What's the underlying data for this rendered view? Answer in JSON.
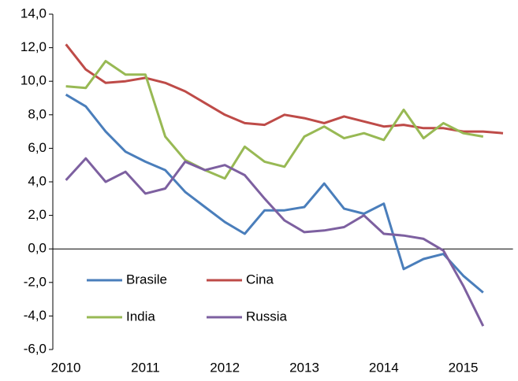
{
  "chart_data": {
    "type": "line",
    "categories": [
      "2010",
      null,
      null,
      null,
      "2011",
      null,
      null,
      null,
      "2012",
      null,
      null,
      null,
      "2013",
      null,
      null,
      null,
      "2014",
      null,
      null,
      null,
      "2015",
      null,
      null
    ],
    "series": [
      {
        "name": "Brasile",
        "color": "#4a7ebb",
        "values": [
          9.2,
          8.5,
          7.0,
          5.8,
          5.2,
          4.7,
          3.4,
          2.5,
          1.6,
          0.9,
          2.3,
          2.3,
          2.5,
          3.9,
          2.4,
          2.1,
          2.7,
          -1.2,
          -0.6,
          -0.3,
          -1.6,
          -2.6,
          null
        ]
      },
      {
        "name": "Cina",
        "color": "#be4b48",
        "values": [
          12.2,
          10.7,
          9.9,
          10.0,
          10.2,
          9.9,
          9.4,
          8.7,
          8.0,
          7.5,
          7.4,
          8.0,
          7.8,
          7.5,
          7.9,
          7.6,
          7.3,
          7.4,
          7.2,
          7.2,
          7.0,
          7.0,
          6.9
        ]
      },
      {
        "name": "India",
        "color": "#98b954",
        "values": [
          9.7,
          9.6,
          11.2,
          10.4,
          10.4,
          6.7,
          5.3,
          4.7,
          4.2,
          6.1,
          5.2,
          4.9,
          6.7,
          7.3,
          6.6,
          6.9,
          6.5,
          8.3,
          6.6,
          7.5,
          6.9,
          6.7,
          null
        ]
      },
      {
        "name": "Russia",
        "color": "#7d60a0",
        "values": [
          4.1,
          5.4,
          4.0,
          4.6,
          3.3,
          3.6,
          5.2,
          4.7,
          5.0,
          4.4,
          3.0,
          1.7,
          1.0,
          1.1,
          1.3,
          2.0,
          0.9,
          0.8,
          0.6,
          -0.1,
          -2.2,
          -4.6,
          null
        ]
      }
    ],
    "ylim": [
      -6,
      14
    ],
    "yticks": [
      {
        "value": -6,
        "label": "-6,0"
      },
      {
        "value": -4,
        "label": "-4,0"
      },
      {
        "value": -2,
        "label": "-2,0"
      },
      {
        "value": 0,
        "label": "0,0"
      },
      {
        "value": 2,
        "label": "2,0"
      },
      {
        "value": 4,
        "label": "4,0"
      },
      {
        "value": 6,
        "label": "6,0"
      },
      {
        "value": 8,
        "label": "8,0"
      },
      {
        "value": 10,
        "label": "10,0"
      },
      {
        "value": 12,
        "label": "12,0"
      },
      {
        "value": 14,
        "label": "14,0"
      }
    ],
    "grid": false
  }
}
